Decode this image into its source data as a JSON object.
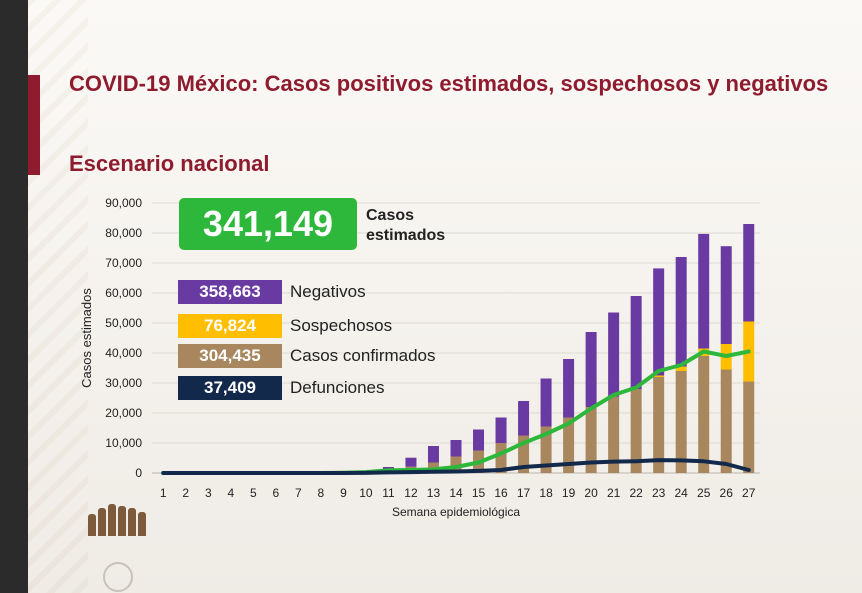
{
  "slide": {
    "title": "COVID-19 México: Casos positivos estimados, sospechosos y negativos",
    "subtitle": "Escenario nacional"
  },
  "summary": {
    "estimated_value": "341,149",
    "estimated_label": "Casos estimados",
    "items": [
      {
        "value": "358,663",
        "label": "Negativos",
        "color": "#6a3aa3"
      },
      {
        "value": "76,824",
        "label": "Sospechosos",
        "color": "#ffbf00"
      },
      {
        "value": "304,435",
        "label": "Casos confirmados",
        "color": "#a8875f"
      },
      {
        "value": "37,409",
        "label": "Defunciones",
        "color": "#13294b"
      }
    ]
  },
  "colors": {
    "title": "#8e1b2e",
    "estimated": "#2db83b",
    "negativos": "#6a3aa3",
    "sospechosos": "#ffbf00",
    "confirmados": "#a8875f",
    "defunciones": "#13294b"
  },
  "chart_data": {
    "type": "bar",
    "stacked": true,
    "xlabel": "Semana epidemiológica",
    "ylabel": "Casos estimados",
    "ylim": [
      0,
      90000
    ],
    "yticks": [
      0,
      10000,
      20000,
      30000,
      40000,
      50000,
      60000,
      70000,
      80000,
      90000
    ],
    "ytick_labels": [
      "0",
      "10,000",
      "20,000",
      "30,000",
      "40,000",
      "50,000",
      "60,000",
      "70,000",
      "80,000",
      "90,000"
    ],
    "categories": [
      "1",
      "2",
      "3",
      "4",
      "5",
      "6",
      "7",
      "8",
      "9",
      "10",
      "11",
      "12",
      "13",
      "14",
      "15",
      "16",
      "17",
      "18",
      "19",
      "20",
      "21",
      "22",
      "23",
      "24",
      "25",
      "26",
      "27"
    ],
    "series": [
      {
        "name": "Casos confirmados",
        "color": "#a8875f",
        "values": [
          0,
          0,
          0,
          0,
          0,
          0,
          0,
          0,
          50,
          200,
          900,
          2100,
          3500,
          5500,
          7500,
          10000,
          12500,
          15500,
          18500,
          22000,
          25500,
          28000,
          32000,
          34000,
          39000,
          34500,
          30500
        ]
      },
      {
        "name": "Sospechosos",
        "color": "#ffbf00",
        "values": [
          0,
          0,
          0,
          0,
          0,
          0,
          0,
          0,
          0,
          0,
          0,
          0,
          0,
          0,
          0,
          0,
          0,
          0,
          0,
          0,
          0,
          0,
          500,
          1500,
          2500,
          8500,
          20000
        ]
      },
      {
        "name": "Negativos",
        "color": "#6a3aa3",
        "values": [
          0,
          0,
          0,
          0,
          0,
          0,
          0,
          0,
          50,
          200,
          1100,
          3000,
          5500,
          5500,
          7000,
          8500,
          11500,
          16000,
          19500,
          25000,
          28000,
          31000,
          35700,
          36500,
          38200,
          32600,
          32500
        ]
      }
    ],
    "lines": [
      {
        "name": "Casos estimados",
        "color": "#2db83b",
        "values": [
          0,
          0,
          0,
          0,
          0,
          0,
          0,
          0,
          100,
          300,
          900,
          1000,
          1200,
          2000,
          3500,
          6500,
          10000,
          13000,
          16500,
          21500,
          26000,
          28500,
          34000,
          36000,
          40500,
          39000,
          40500
        ]
      },
      {
        "name": "Defunciones",
        "color": "#13294b",
        "values": [
          0,
          0,
          0,
          0,
          0,
          0,
          0,
          0,
          0,
          50,
          200,
          300,
          400,
          500,
          700,
          1000,
          2000,
          2500,
          3000,
          3500,
          3800,
          3900,
          4300,
          4200,
          3900,
          3000,
          1000
        ]
      }
    ]
  }
}
